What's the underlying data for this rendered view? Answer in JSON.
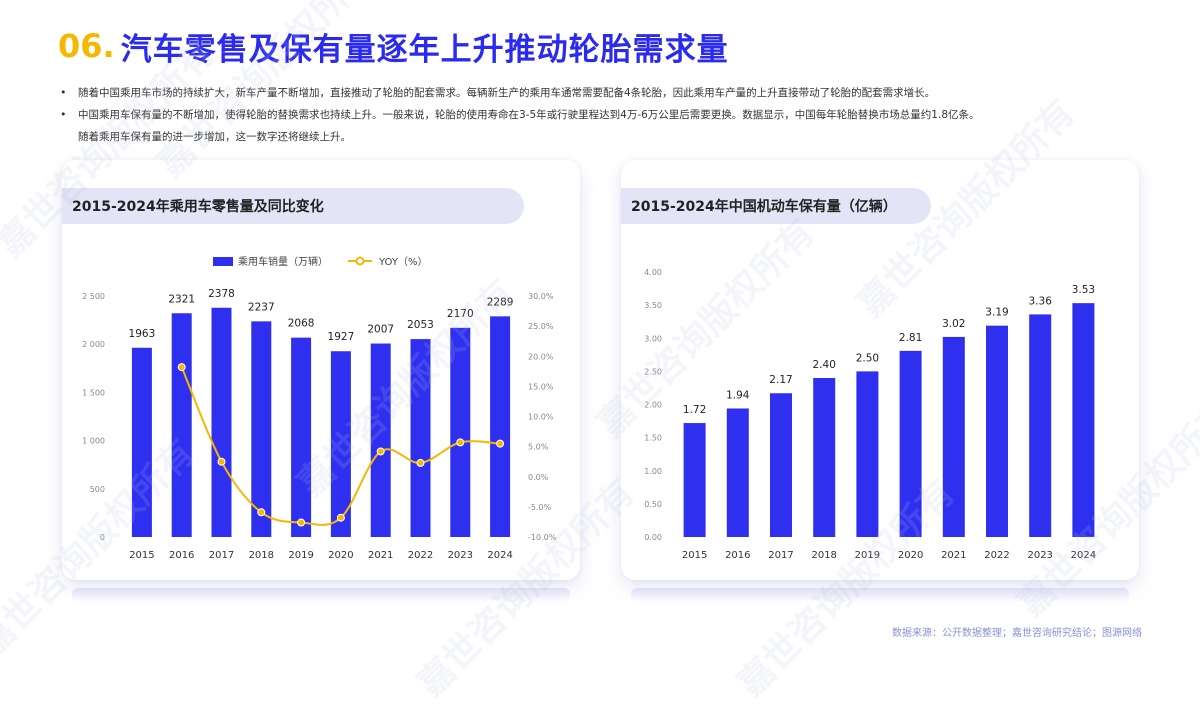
{
  "header": {
    "number": "06.",
    "title": "汽车零售及保有量逐年上升推动轮胎需求量"
  },
  "bullets": [
    "随着中国乘用车市场的持续扩大，新车产量不断增加，直接推动了轮胎的配套需求。每辆新生产的乘用车通常需要配备4条轮胎，因此乘用车产量的上升直接带动了轮胎的配套需求增长。",
    "中国乘用车保有量的不断增加，使得轮胎的替换需求也持续上升。一般来说，轮胎的使用寿命在3-5年或行驶里程达到4万-6万公里后需要更换。数据显示，中国每年轮胎替换市场总量约1.8亿条。",
    "随着乘用车保有量的进一步增加，这一数字还将继续上升。"
  ],
  "watermark_text": "嘉世咨询版权所有",
  "source": "数据来源：公开数据整理；嘉世咨询研究结论；图源网络",
  "colors": {
    "title_accent": "#f5b800",
    "title_blue": "#2b2bf0",
    "bar": "#2f2ff0",
    "line": "#f5b800"
  },
  "chart_data": [
    {
      "type": "bar",
      "title": "2015-2024年乘用车零售量及同比变化",
      "categories": [
        "2015",
        "2016",
        "2017",
        "2018",
        "2019",
        "2020",
        "2021",
        "2022",
        "2023",
        "2024"
      ],
      "series": [
        {
          "name": "乘用车销量（万辆）",
          "type": "bar",
          "axis": "left",
          "values": [
            1963,
            2321,
            2378,
            2237,
            2068,
            1927,
            2007,
            2053,
            2170,
            2289
          ]
        },
        {
          "name": "YOY（%）",
          "type": "line",
          "axis": "right",
          "values": [
            null,
            18.2,
            2.5,
            -5.9,
            -7.6,
            -6.8,
            4.2,
            2.3,
            5.7,
            5.5
          ]
        }
      ],
      "ylim": [
        0,
        2500
      ],
      "yticks": [
        "0",
        "500",
        "1 000",
        "1 500",
        "2 000",
        "2 500"
      ],
      "y2lim": [
        -10,
        30
      ],
      "y2ticks": [
        "-10.0%",
        "-5.0%",
        "0.0%",
        "5.0%",
        "10.0%",
        "15.0%",
        "20.0%",
        "25.0%",
        "30.0%"
      ],
      "legend": "top-center",
      "grid": false
    },
    {
      "type": "bar",
      "title": "2015-2024年中国机动车保有量（亿辆）",
      "categories": [
        "2015",
        "2016",
        "2017",
        "2018",
        "2019",
        "2020",
        "2021",
        "2022",
        "2023",
        "2024"
      ],
      "values": [
        1.72,
        1.94,
        2.17,
        2.4,
        2.5,
        2.81,
        3.02,
        3.19,
        3.36,
        3.53
      ],
      "value_labels": [
        "1.72",
        "1.94",
        "2.17",
        "2.40",
        "2.50",
        "2.81",
        "3.02",
        "3.19",
        "3.36",
        "3.53"
      ],
      "ylim": [
        0,
        4
      ],
      "yticks": [
        "0.00",
        "0.50",
        "1.00",
        "1.50",
        "2.00",
        "2.50",
        "3.00",
        "3.50",
        "4.00"
      ],
      "grid": false
    }
  ]
}
